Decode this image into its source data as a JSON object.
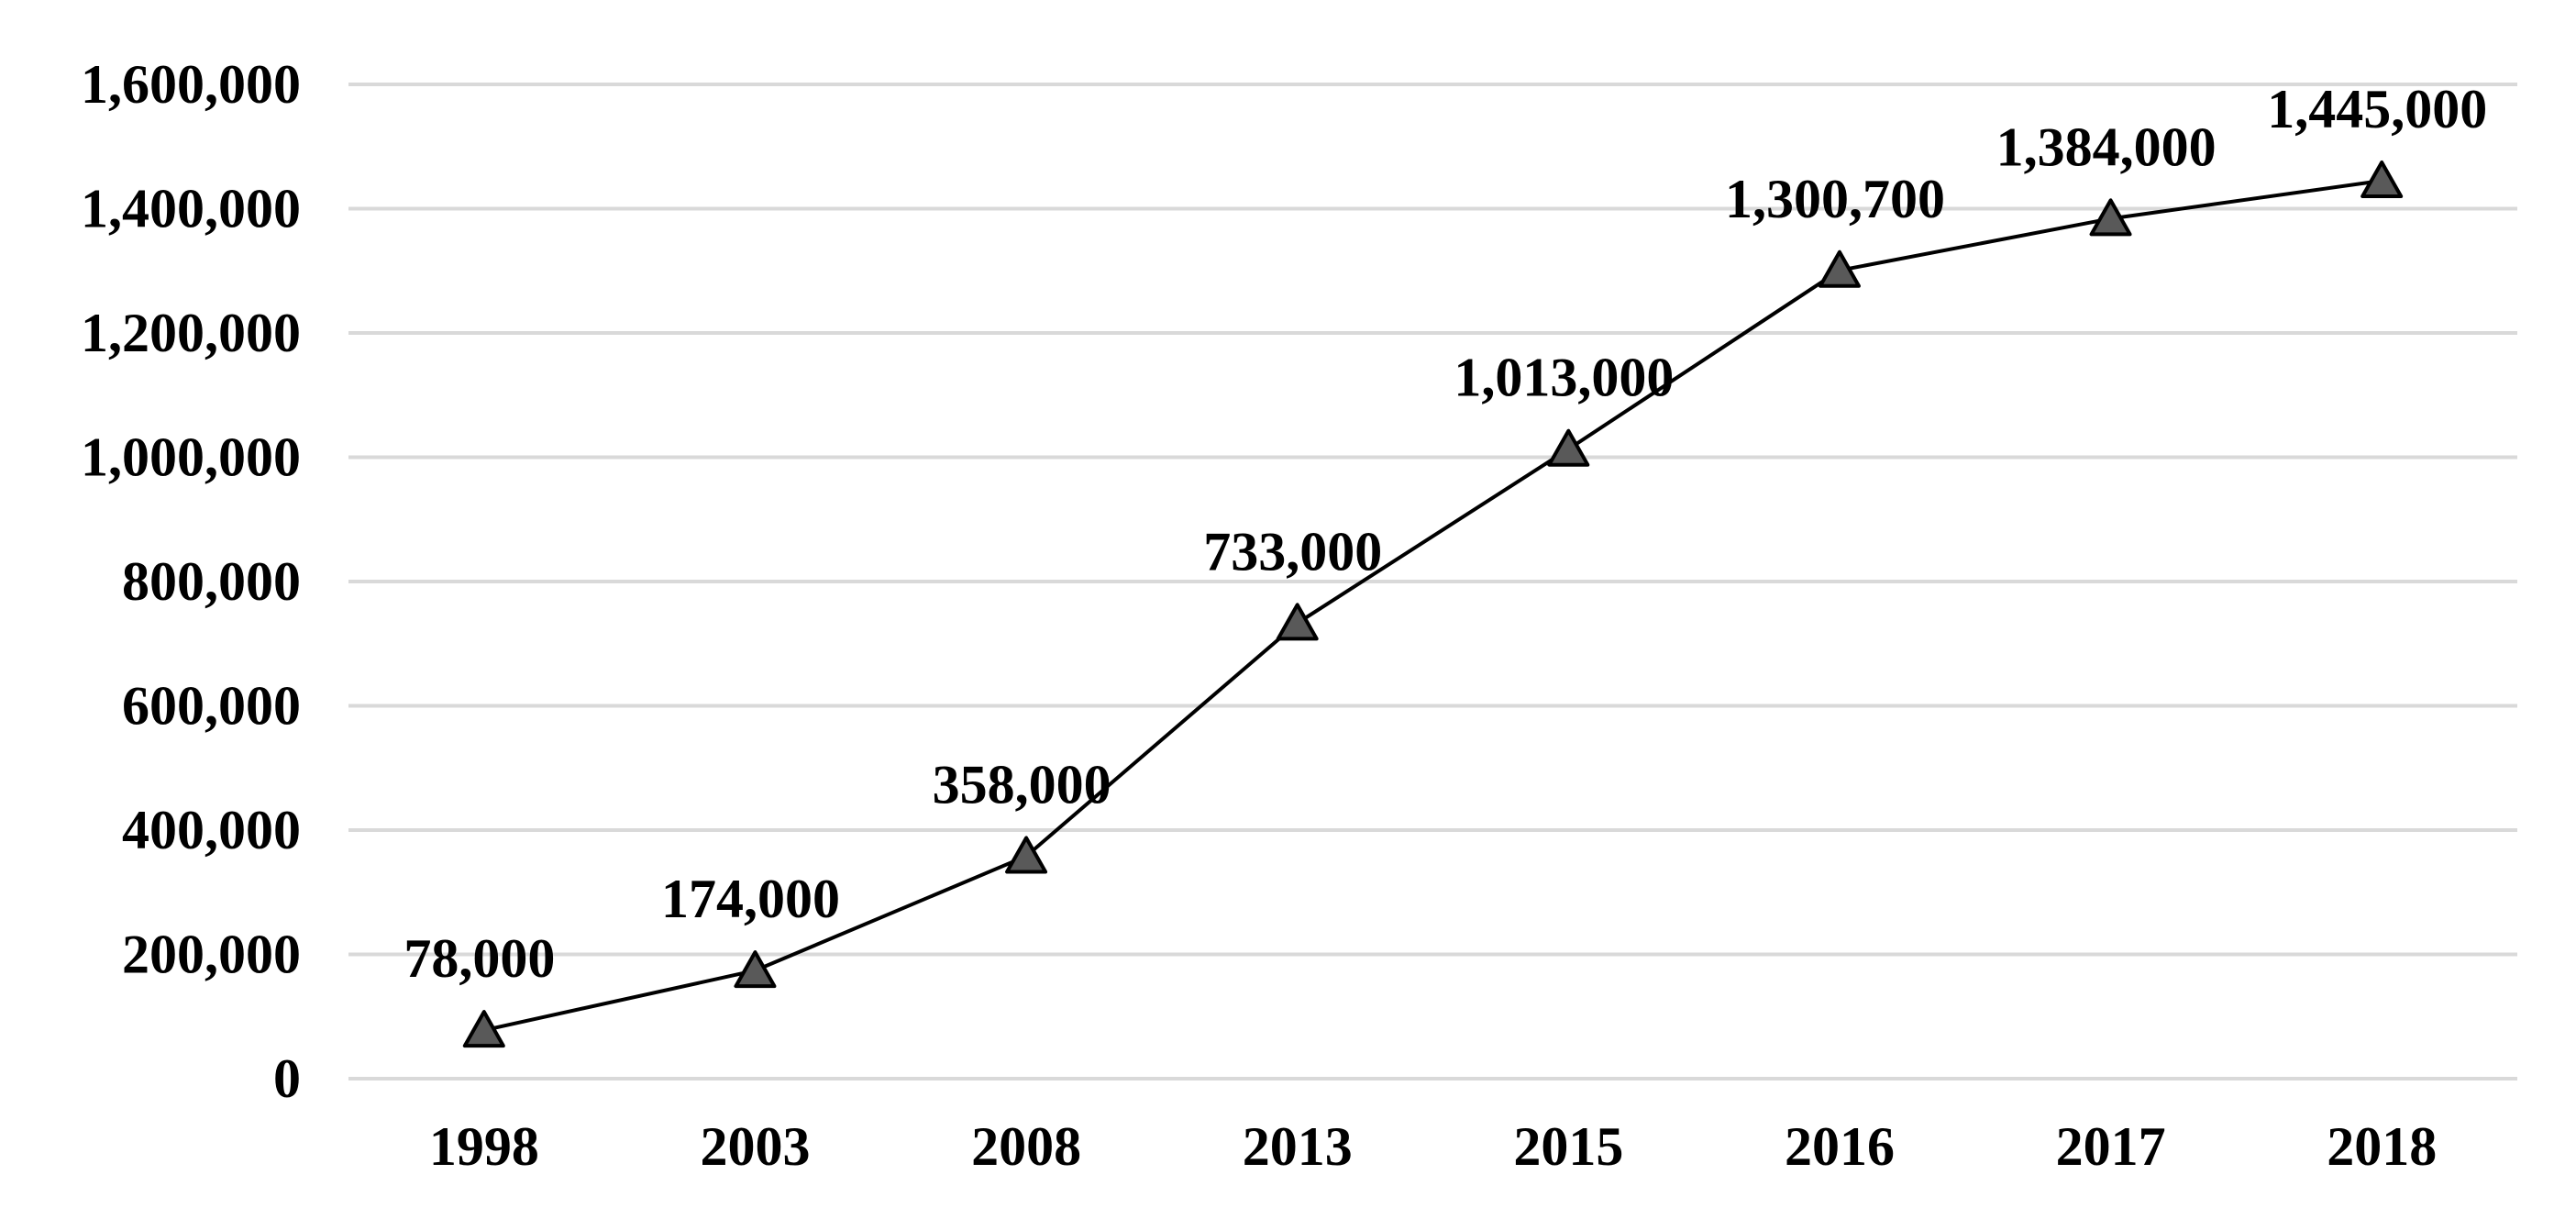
{
  "chart_data": {
    "type": "line",
    "categories": [
      "1998",
      "2003",
      "2008",
      "2013",
      "2015",
      "2016",
      "2017",
      "2018"
    ],
    "values": [
      78000,
      174000,
      358000,
      733000,
      1013000,
      1300700,
      1384000,
      1445000
    ],
    "data_labels": [
      "78,000",
      "174,000",
      "358,000",
      "733,000",
      "1,013,000",
      "1,300,700",
      "1,384,000",
      "1,445,000"
    ],
    "y_ticks": [
      0,
      200000,
      400000,
      600000,
      800000,
      1000000,
      1200000,
      1400000,
      1600000
    ],
    "y_tick_labels": [
      "0",
      "200,000",
      "400,000",
      "600,000",
      "800,000",
      "1,000,000",
      "1,200,000",
      "1,400,000",
      "1,600,000"
    ],
    "ylim": [
      0,
      1600000
    ],
    "title": "",
    "xlabel": "",
    "ylabel": "",
    "grid": "horizontal",
    "legend": "none",
    "marker": "triangle",
    "colors": {
      "line": "#000000",
      "marker_fill": "#595959",
      "gridline": "#d9d9d9",
      "text": "#000000"
    }
  }
}
